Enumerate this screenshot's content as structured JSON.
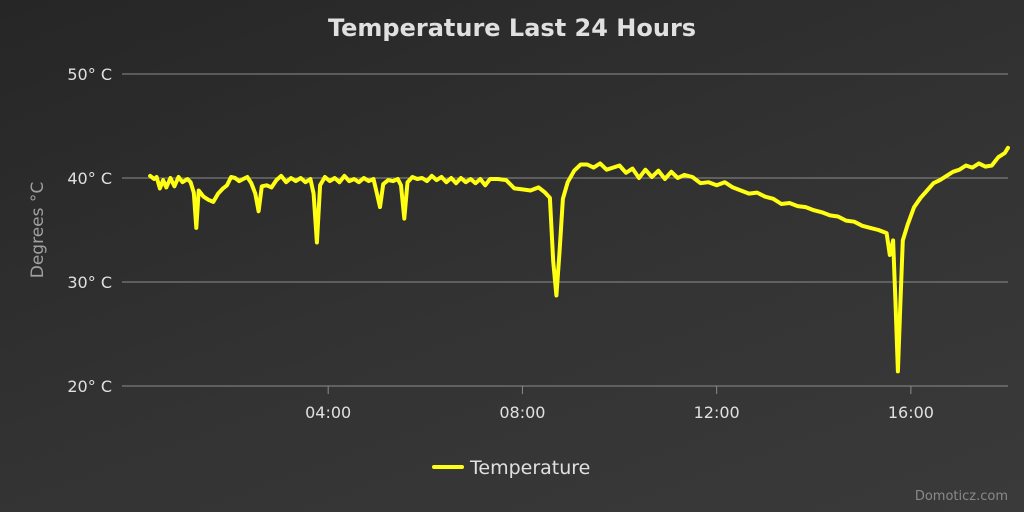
{
  "colors": {
    "series": "#ffff14",
    "grid": "#8c8c8c",
    "text": "#e0e0e0",
    "axis_title": "#a0a0a0"
  },
  "credit": "Domoticz.com",
  "chart_data": {
    "type": "line",
    "title": "Temperature Last 24 Hours",
    "ylabel": "Degrees °C",
    "xlabel": "",
    "ylim": [
      20,
      50
    ],
    "yticks": [
      20,
      30,
      40,
      50
    ],
    "ytick_labels": [
      "20° C",
      "30° C",
      "40° C",
      "50° C"
    ],
    "xlim": [
      "00:05",
      "18:00"
    ],
    "xticks": [
      "04:00",
      "08:00",
      "12:00",
      "16:00"
    ],
    "grid": true,
    "legend": "bottom-center",
    "series": [
      {
        "name": "Temperature",
        "color": "#ffff14",
        "points": [
          [
            "00:20",
            40.2
          ],
          [
            "00:25",
            39.9
          ],
          [
            "00:28",
            40.1
          ],
          [
            "00:32",
            39.0
          ],
          [
            "00:36",
            39.8
          ],
          [
            "00:40",
            39.1
          ],
          [
            "00:45",
            40.0
          ],
          [
            "00:50",
            39.2
          ],
          [
            "00:55",
            40.1
          ],
          [
            "01:00",
            39.6
          ],
          [
            "01:06",
            39.9
          ],
          [
            "01:10",
            39.6
          ],
          [
            "01:14",
            38.6
          ],
          [
            "01:17",
            35.2
          ],
          [
            "01:20",
            38.8
          ],
          [
            "01:26",
            38.2
          ],
          [
            "01:32",
            37.9
          ],
          [
            "01:38",
            37.7
          ],
          [
            "01:44",
            38.5
          ],
          [
            "01:50",
            39.0
          ],
          [
            "01:55",
            39.3
          ],
          [
            "02:00",
            40.1
          ],
          [
            "02:05",
            40.0
          ],
          [
            "02:10",
            39.7
          ],
          [
            "02:15",
            39.9
          ],
          [
            "02:20",
            40.1
          ],
          [
            "02:25",
            39.5
          ],
          [
            "02:30",
            38.5
          ],
          [
            "02:34",
            36.8
          ],
          [
            "02:38",
            39.2
          ],
          [
            "02:44",
            39.3
          ],
          [
            "02:50",
            39.1
          ],
          [
            "02:56",
            39.8
          ],
          [
            "03:02",
            40.2
          ],
          [
            "03:08",
            39.6
          ],
          [
            "03:14",
            40.0
          ],
          [
            "03:20",
            39.7
          ],
          [
            "03:26",
            40.0
          ],
          [
            "03:32",
            39.6
          ],
          [
            "03:38",
            39.9
          ],
          [
            "03:42",
            38.5
          ],
          [
            "03:46",
            33.8
          ],
          [
            "03:50",
            39.3
          ],
          [
            "03:56",
            40.1
          ],
          [
            "04:02",
            39.7
          ],
          [
            "04:08",
            40.0
          ],
          [
            "04:14",
            39.6
          ],
          [
            "04:20",
            40.2
          ],
          [
            "04:26",
            39.7
          ],
          [
            "04:32",
            39.9
          ],
          [
            "04:38",
            39.6
          ],
          [
            "04:44",
            40.0
          ],
          [
            "04:50",
            39.7
          ],
          [
            "04:56",
            39.9
          ],
          [
            "05:00",
            38.6
          ],
          [
            "05:04",
            37.2
          ],
          [
            "05:08",
            39.4
          ],
          [
            "05:14",
            39.8
          ],
          [
            "05:20",
            39.7
          ],
          [
            "05:26",
            39.9
          ],
          [
            "05:30",
            39.3
          ],
          [
            "05:34",
            36.1
          ],
          [
            "05:38",
            39.6
          ],
          [
            "05:44",
            40.1
          ],
          [
            "05:50",
            39.9
          ],
          [
            "05:56",
            40.0
          ],
          [
            "06:02",
            39.7
          ],
          [
            "06:08",
            40.2
          ],
          [
            "06:14",
            39.8
          ],
          [
            "06:20",
            40.1
          ],
          [
            "06:26",
            39.6
          ],
          [
            "06:32",
            40.0
          ],
          [
            "06:38",
            39.5
          ],
          [
            "06:44",
            40.0
          ],
          [
            "06:50",
            39.6
          ],
          [
            "06:56",
            39.9
          ],
          [
            "07:02",
            39.5
          ],
          [
            "07:08",
            39.9
          ],
          [
            "07:14",
            39.3
          ],
          [
            "07:20",
            39.9
          ],
          [
            "07:30",
            39.9
          ],
          [
            "07:40",
            39.8
          ],
          [
            "07:50",
            39.0
          ],
          [
            "08:00",
            38.9
          ],
          [
            "08:10",
            38.8
          ],
          [
            "08:20",
            39.1
          ],
          [
            "08:28",
            38.6
          ],
          [
            "08:34",
            38.1
          ],
          [
            "08:38",
            32.0
          ],
          [
            "08:42",
            28.7
          ],
          [
            "08:46",
            33.0
          ],
          [
            "08:50",
            38.0
          ],
          [
            "08:56",
            39.6
          ],
          [
            "09:04",
            40.7
          ],
          [
            "09:12",
            41.3
          ],
          [
            "09:20",
            41.3
          ],
          [
            "09:28",
            41.0
          ],
          [
            "09:36",
            41.4
          ],
          [
            "09:44",
            40.8
          ],
          [
            "09:52",
            41.0
          ],
          [
            "10:00",
            41.2
          ],
          [
            "10:08",
            40.5
          ],
          [
            "10:16",
            40.9
          ],
          [
            "10:24",
            40.0
          ],
          [
            "10:32",
            40.8
          ],
          [
            "10:40",
            40.1
          ],
          [
            "10:48",
            40.7
          ],
          [
            "10:56",
            39.9
          ],
          [
            "11:04",
            40.6
          ],
          [
            "11:12",
            40.0
          ],
          [
            "11:20",
            40.3
          ],
          [
            "11:30",
            40.1
          ],
          [
            "11:40",
            39.5
          ],
          [
            "11:50",
            39.6
          ],
          [
            "12:00",
            39.3
          ],
          [
            "12:10",
            39.6
          ],
          [
            "12:20",
            39.1
          ],
          [
            "12:30",
            38.8
          ],
          [
            "12:40",
            38.5
          ],
          [
            "12:50",
            38.6
          ],
          [
            "13:00",
            38.2
          ],
          [
            "13:10",
            38.0
          ],
          [
            "13:20",
            37.5
          ],
          [
            "13:30",
            37.6
          ],
          [
            "13:40",
            37.3
          ],
          [
            "13:50",
            37.2
          ],
          [
            "14:00",
            36.9
          ],
          [
            "14:10",
            36.7
          ],
          [
            "14:20",
            36.4
          ],
          [
            "14:30",
            36.3
          ],
          [
            "14:40",
            35.9
          ],
          [
            "14:50",
            35.8
          ],
          [
            "15:00",
            35.4
          ],
          [
            "15:10",
            35.2
          ],
          [
            "15:20",
            35.0
          ],
          [
            "15:30",
            34.7
          ],
          [
            "15:34",
            32.6
          ],
          [
            "15:38",
            34.0
          ],
          [
            "15:41",
            28.0
          ],
          [
            "15:44",
            21.4
          ],
          [
            "15:47",
            28.0
          ],
          [
            "15:50",
            34.0
          ],
          [
            "15:56",
            35.5
          ],
          [
            "16:04",
            37.2
          ],
          [
            "16:12",
            38.1
          ],
          [
            "16:20",
            38.8
          ],
          [
            "16:28",
            39.5
          ],
          [
            "16:36",
            39.8
          ],
          [
            "16:44",
            40.2
          ],
          [
            "16:52",
            40.6
          ],
          [
            "17:00",
            40.8
          ],
          [
            "17:08",
            41.2
          ],
          [
            "17:16",
            41.0
          ],
          [
            "17:24",
            41.4
          ],
          [
            "17:32",
            41.1
          ],
          [
            "17:40",
            41.2
          ],
          [
            "17:48",
            42.0
          ],
          [
            "17:56",
            42.4
          ],
          [
            "18:00",
            42.9
          ]
        ]
      }
    ]
  }
}
